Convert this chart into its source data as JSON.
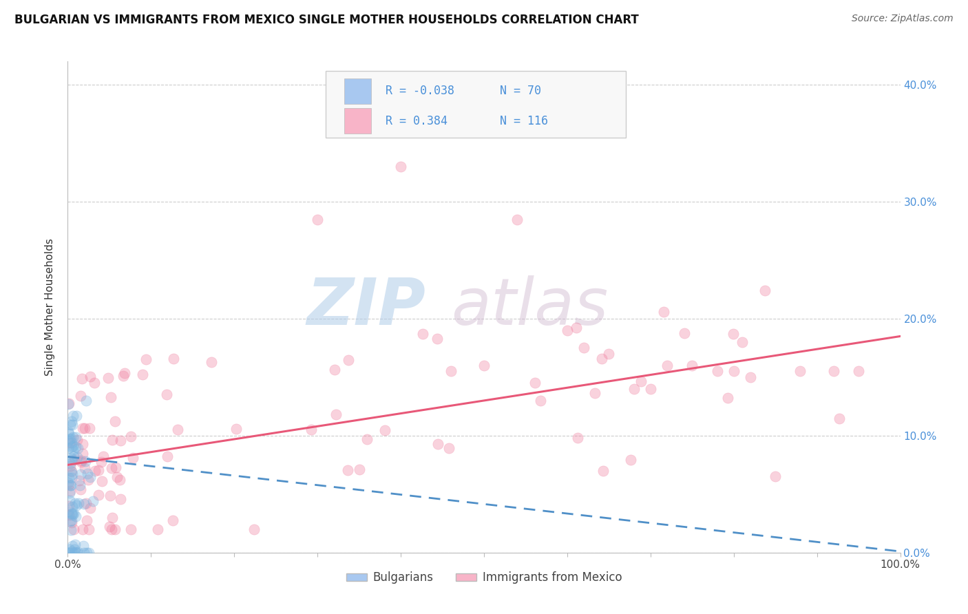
{
  "title": "BULGARIAN VS IMMIGRANTS FROM MEXICO SINGLE MOTHER HOUSEHOLDS CORRELATION CHART",
  "source": "Source: ZipAtlas.com",
  "ylabel": "Single Mother Households",
  "xlabel_ticks": [
    "0.0%",
    "",
    "",
    "",
    "",
    "",
    "",
    "",
    "",
    "",
    "100.0%"
  ],
  "xtick_vals": [
    0.0,
    0.1,
    0.2,
    0.3,
    0.4,
    0.5,
    0.6,
    0.7,
    0.8,
    0.9,
    1.0
  ],
  "ytick_labels_right": [
    "0.0%",
    "10.0%",
    "20.0%",
    "30.0%",
    "40.0%"
  ],
  "ytick_vals": [
    0.0,
    0.1,
    0.2,
    0.3,
    0.4
  ],
  "xlim": [
    0.0,
    1.0
  ],
  "ylim": [
    0.0,
    0.42
  ],
  "legend_entries": [
    {
      "label": "Bulgarians",
      "color": "#a8c8f0",
      "R": "-0.038",
      "N": "70"
    },
    {
      "label": "Immigrants from Mexico",
      "color": "#f8b4c8",
      "R": "0.384",
      "N": "116"
    }
  ],
  "title_fontsize": 12,
  "source_fontsize": 10,
  "axis_label_fontsize": 11,
  "tick_fontsize": 11,
  "watermark_text": "ZIP",
  "watermark_text2": "atlas",
  "background_color": "#ffffff",
  "grid_color": "#cccccc",
  "blue_scatter_color": "#7ab4e0",
  "pink_scatter_color": "#f080a0",
  "blue_line_color": "#5090c8",
  "pink_line_color": "#e85878",
  "scatter_size": 120,
  "scatter_alpha": 0.35,
  "title_color": "#111111",
  "source_color": "#666666",
  "blue_trend_start_y": 0.082,
  "blue_trend_end_y": 0.001,
  "pink_trend_start_y": 0.075,
  "pink_trend_end_y": 0.185
}
